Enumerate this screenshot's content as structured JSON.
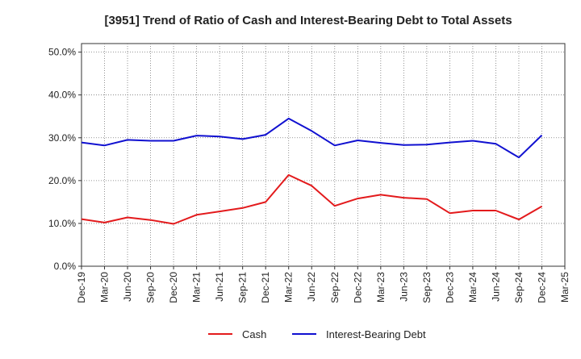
{
  "chart_data": {
    "type": "line",
    "title": "[3951]  Trend of Ratio of Cash and Interest-Bearing Debt to Total Assets",
    "xlabel": "",
    "ylabel": "",
    "categories": [
      "Dec-19",
      "Mar-20",
      "Jun-20",
      "Sep-20",
      "Dec-20",
      "Mar-21",
      "Jun-21",
      "Sep-21",
      "Dec-21",
      "Mar-22",
      "Jun-22",
      "Sep-22",
      "Dec-22",
      "Mar-23",
      "Jun-23",
      "Sep-23",
      "Dec-23",
      "Mar-24",
      "Jun-24",
      "Sep-24",
      "Dec-24",
      "Mar-25"
    ],
    "y_ticks": [
      "0.0%",
      "10.0%",
      "20.0%",
      "30.0%",
      "40.0%",
      "50.0%"
    ],
    "ylim": [
      0,
      52
    ],
    "grid": true,
    "legend_position": "bottom",
    "series": [
      {
        "name": "Cash",
        "color": "#e31a1c",
        "values": [
          11.0,
          10.2,
          11.4,
          10.8,
          9.9,
          12.0,
          12.8,
          13.6,
          15.0,
          21.3,
          18.8,
          14.1,
          15.8,
          16.7,
          16.0,
          15.7,
          12.4,
          13.0,
          13.0,
          10.9,
          14.0,
          null
        ]
      },
      {
        "name": "Interest-Bearing Debt",
        "color": "#1010d0",
        "values": [
          28.9,
          28.2,
          29.5,
          29.3,
          29.3,
          30.5,
          30.3,
          29.7,
          30.7,
          34.5,
          31.6,
          28.2,
          29.4,
          28.8,
          28.3,
          28.4,
          28.9,
          29.3,
          28.6,
          25.4,
          30.6,
          null
        ]
      }
    ]
  }
}
